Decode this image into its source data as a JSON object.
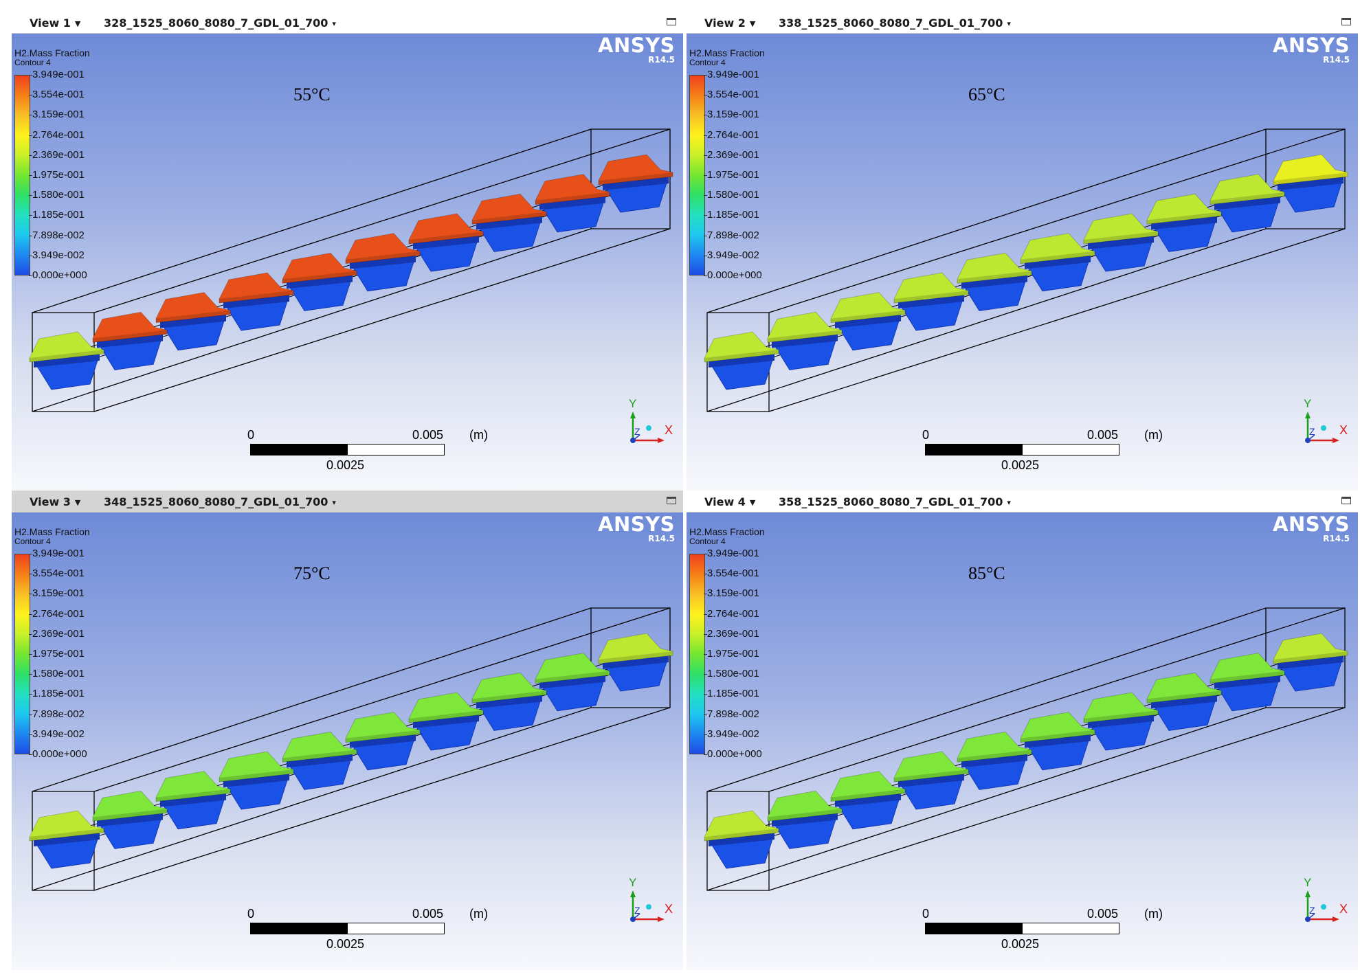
{
  "branding": {
    "name": "ANSYS",
    "version": "R14.5"
  },
  "legend": {
    "variable": "H2.Mass Fraction",
    "contour": "Contour 4",
    "ticks": [
      "3.949e-001",
      "3.554e-001",
      "3.159e-001",
      "2.764e-001",
      "2.369e-001",
      "1.975e-001",
      "1.580e-001",
      "1.185e-001",
      "7.898e-002",
      "3.949e-002",
      "0.000e+000"
    ],
    "colors": [
      "#f0401e",
      "#f57f17",
      "#f7c025",
      "#fff21c",
      "#c8f028",
      "#74e630",
      "#2ee066",
      "#22e0c0",
      "#1ec8f0",
      "#1e88f0",
      "#1e4be6"
    ]
  },
  "scale": {
    "zero": "0",
    "max": "0.005",
    "unit": "(m)",
    "mid": "0.0025",
    "fill_fraction": 0.5
  },
  "axes": {
    "y": "Y",
    "z": "Z",
    "x": "X"
  },
  "colors": {
    "red": "#e8501a",
    "lime": "#bde832",
    "yellow_green": "#e8f020",
    "green": "#7fe63a",
    "blue": "#1a52e8",
    "dark_blue": "#1438b4"
  },
  "views": [
    {
      "label": "View 1",
      "case": "328_1525_8060_8080_7_GDL_01_700",
      "temperature": "55°C",
      "active": false,
      "top_colors": [
        "lime",
        "red",
        "red",
        "red",
        "red",
        "red",
        "red",
        "red",
        "red",
        "red"
      ]
    },
    {
      "label": "View 2",
      "case": "338_1525_8060_8080_7_GDL_01_700",
      "temperature": "65°C",
      "active": false,
      "top_colors": [
        "lime",
        "lime",
        "lime",
        "lime",
        "lime",
        "lime",
        "lime",
        "lime",
        "lime",
        "yellow_green"
      ]
    },
    {
      "label": "View 3",
      "case": "348_1525_8060_8080_7_GDL_01_700",
      "temperature": "75°C",
      "active": true,
      "top_colors": [
        "lime",
        "green",
        "green",
        "green",
        "green",
        "green",
        "green",
        "green",
        "green",
        "lime"
      ]
    },
    {
      "label": "View 4",
      "case": "358_1525_8060_8080_7_GDL_01_700",
      "temperature": "85°C",
      "active": false,
      "top_colors": [
        "lime",
        "green",
        "green",
        "green",
        "green",
        "green",
        "green",
        "green",
        "green",
        "lime"
      ]
    }
  ]
}
